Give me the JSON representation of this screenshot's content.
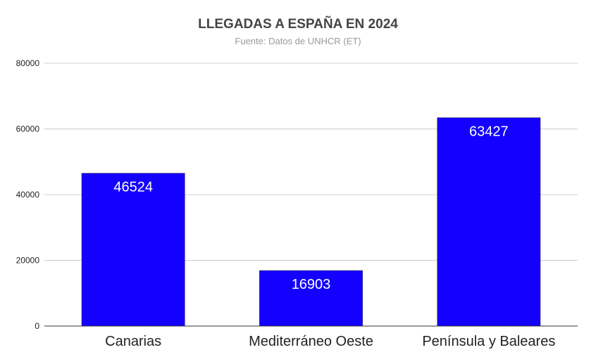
{
  "chart_data": {
    "type": "bar",
    "title": "LLEGADAS A ESPAÑA EN 2024",
    "subtitle": "Fuente: Datos de UNHCR (ET)",
    "categories": [
      "Canarias",
      "Mediterráneo Oeste",
      "Península y Baleares"
    ],
    "values": [
      46524,
      16903,
      63427
    ],
    "data_labels": [
      "46524",
      "16903",
      "63427"
    ],
    "ylim": [
      0,
      80000
    ],
    "yticks": [
      "0",
      "20000",
      "40000",
      "60000",
      "80000"
    ],
    "ytick_values": [
      0,
      20000,
      40000,
      60000,
      80000
    ],
    "grid": true,
    "legend": "none",
    "bar_color": "#1400ff",
    "xlabel": "",
    "ylabel": ""
  }
}
